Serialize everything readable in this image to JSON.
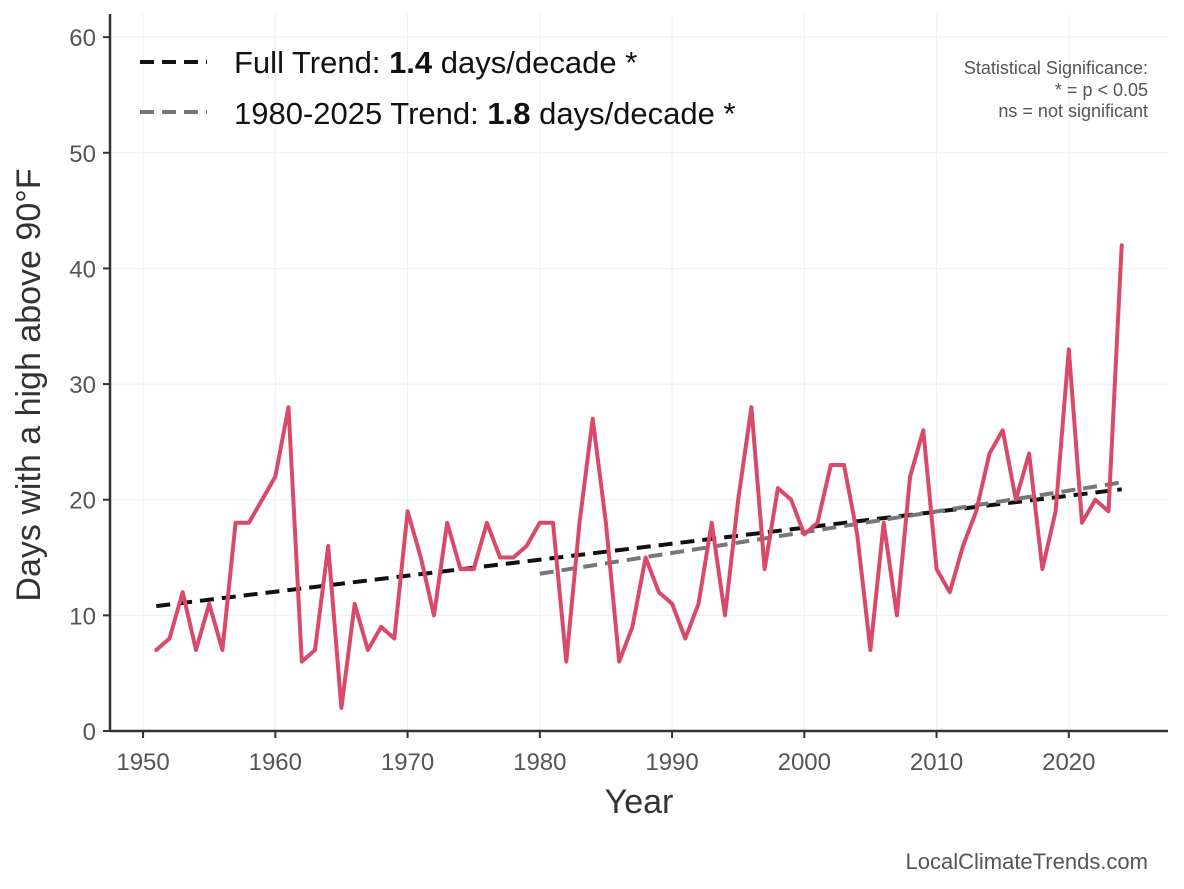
{
  "chart_data": {
    "type": "line",
    "xlabel": "Year",
    "ylabel": "Days with a high above 90°F",
    "xlim": [
      1947.5,
      2027.5
    ],
    "ylim": [
      0,
      62
    ],
    "x_ticks": [
      1950,
      1960,
      1970,
      1980,
      1990,
      2000,
      2010,
      2020
    ],
    "y_ticks": [
      0,
      10,
      20,
      30,
      40,
      50,
      60
    ],
    "grid": true,
    "legend_position": "top-left",
    "series": [
      {
        "color": "#d94a6a",
        "x": [
          1951,
          1952,
          1953,
          1954,
          1955,
          1956,
          1957,
          1958,
          1959,
          1960,
          1961,
          1962,
          1963,
          1964,
          1965,
          1966,
          1967,
          1968,
          1969,
          1970,
          1971,
          1972,
          1973,
          1974,
          1975,
          1976,
          1977,
          1978,
          1979,
          1980,
          1981,
          1982,
          1983,
          1984,
          1985,
          1986,
          1987,
          1988,
          1989,
          1990,
          1991,
          1992,
          1993,
          1994,
          1995,
          1996,
          1997,
          1998,
          1999,
          2000,
          2001,
          2002,
          2003,
          2004,
          2005,
          2006,
          2007,
          2008,
          2009,
          2010,
          2011,
          2012,
          2013,
          2014,
          2015,
          2016,
          2017,
          2018,
          2019,
          2020,
          2021,
          2022,
          2023,
          2024
        ],
        "values": [
          7,
          8,
          12,
          7,
          11,
          7,
          18,
          18,
          20,
          22,
          28,
          6,
          7,
          16,
          2,
          11,
          7,
          9,
          8,
          19,
          15,
          10,
          18,
          14,
          14,
          18,
          15,
          15,
          16,
          18,
          18,
          6,
          18,
          27,
          18,
          6,
          9,
          15,
          12,
          11,
          8,
          11,
          18,
          10,
          20,
          28,
          14,
          21,
          20,
          17,
          18,
          23,
          23,
          17,
          7,
          18,
          10,
          22,
          26,
          14,
          12,
          16,
          19,
          24,
          26,
          20,
          24,
          14,
          19,
          33,
          18,
          20,
          19,
          42
        ]
      }
    ],
    "trend_lines": [
      {
        "name": "Full Trend",
        "x": [
          1951,
          2024
        ],
        "values": [
          10.8,
          20.9
        ],
        "color": "#111111",
        "dash": true
      },
      {
        "name": "1980-2025 Trend",
        "x": [
          1980,
          2024
        ],
        "values": [
          13.6,
          21.5
        ],
        "color": "#777777",
        "dash": true
      }
    ]
  },
  "legend": {
    "full": {
      "prefix": "Full Trend: ",
      "value": "1.4",
      "suffix": " days/decade *"
    },
    "recent": {
      "prefix": "1980-2025 Trend: ",
      "value": "1.8",
      "suffix": " days/decade *"
    }
  },
  "significance_note": [
    "Statistical Significance:",
    "* = p < 0.05",
    "ns = not significant"
  ],
  "credit": "LocalClimateTrends.com"
}
